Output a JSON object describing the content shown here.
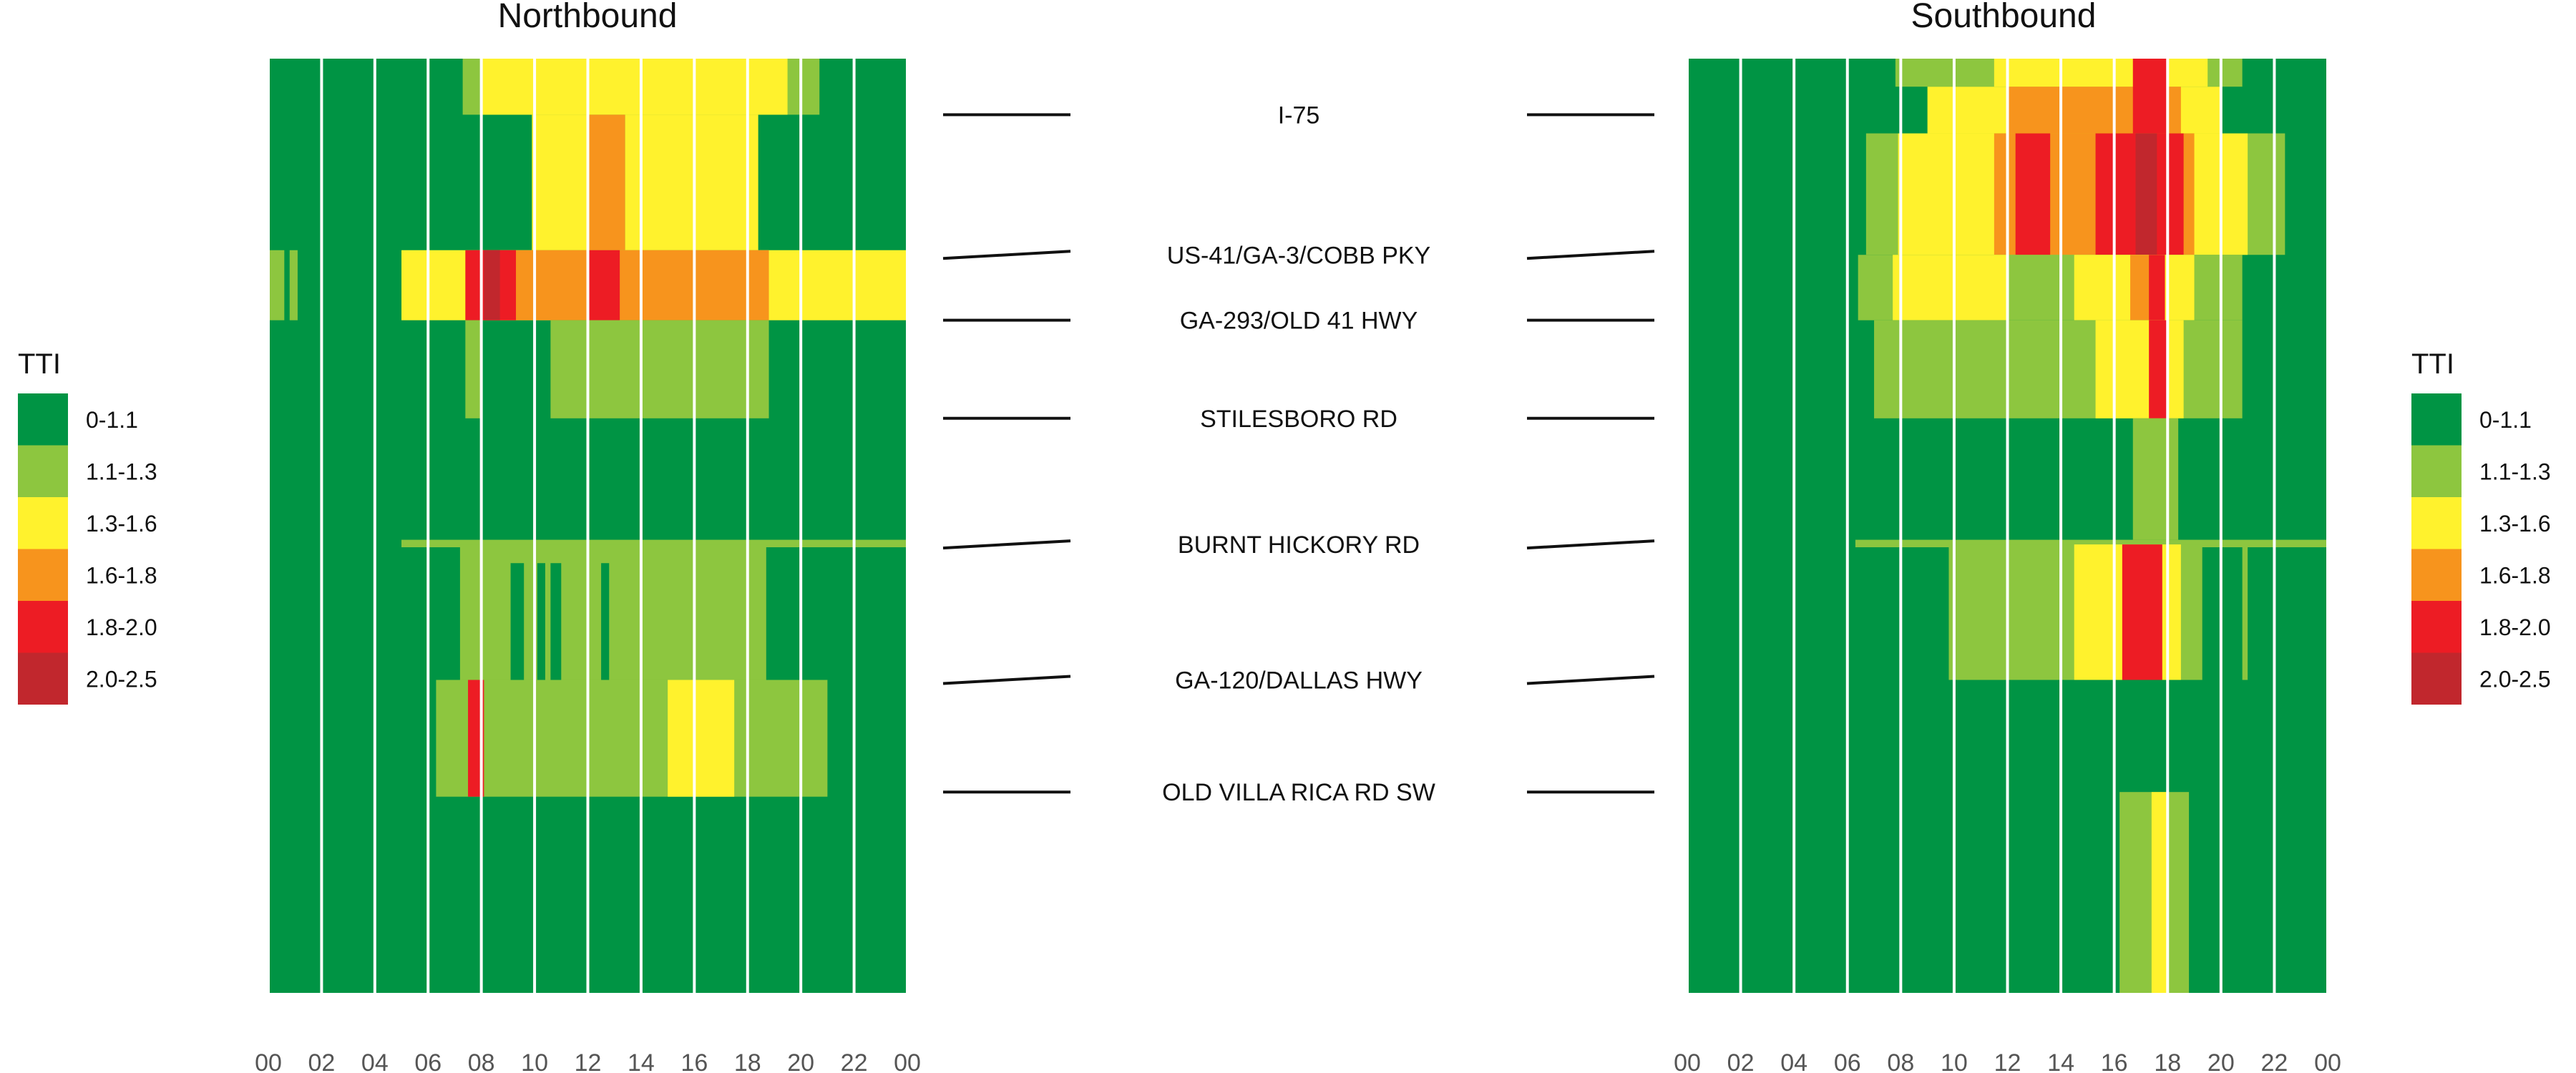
{
  "chart_data": {
    "type": "heatmap",
    "metric": "TTI",
    "legend": {
      "title": "TTI",
      "bins": [
        {
          "label": "0-1.1",
          "color": "#009444"
        },
        {
          "label": "1.1-1.3",
          "color": "#8dc63f"
        },
        {
          "label": "1.3-1.6",
          "color": "#fff22d"
        },
        {
          "label": "1.6-1.8",
          "color": "#f7941d"
        },
        {
          "label": "1.8-2.0",
          "color": "#ed1c24"
        },
        {
          "label": "2.0-2.5",
          "color": "#c1272d"
        }
      ]
    },
    "x_axis": {
      "domain_hours": [
        0,
        24
      ],
      "ticks": [
        "00",
        "02",
        "04",
        "06",
        "08",
        "10",
        "12",
        "14",
        "16",
        "18",
        "20",
        "22",
        "00"
      ]
    },
    "y_axis": {
      "domain_mile": [
        0,
        100
      ],
      "landmarks": [
        {
          "label": "I-75",
          "mile": 6
        },
        {
          "label": "US-41/GA-3/COBB PKY",
          "mile": 21
        },
        {
          "label": "GA-293/OLD 41 HWY",
          "mile": 28
        },
        {
          "label": "STILESBORO RD",
          "mile": 38.5
        },
        {
          "label": "BURNT HICKORY RD",
          "mile": 52
        },
        {
          "label": "GA-120/DALLAS HWY",
          "mile": 66.5
        },
        {
          "label": "OLD VILLA RICA RD SW",
          "mile": 78.5
        }
      ]
    },
    "panels": [
      {
        "title": "Northbound",
        "background_class": 0,
        "cells": [
          [
            7.3,
            20.7,
            0,
            6,
            1
          ],
          [
            8,
            19.5,
            0,
            6,
            2
          ],
          [
            9.9,
            12,
            6,
            20.5,
            2
          ],
          [
            12,
            13.4,
            6,
            20.5,
            3
          ],
          [
            13.4,
            18.4,
            6,
            20.5,
            2
          ],
          [
            5,
            24,
            20.5,
            28,
            2
          ],
          [
            7.7,
            18.8,
            20.5,
            28,
            3
          ],
          [
            7.4,
            9.3,
            20.5,
            28,
            4
          ],
          [
            8.1,
            8.7,
            20.5,
            28,
            5
          ],
          [
            12,
            13.2,
            20.5,
            28,
            4
          ],
          [
            0,
            0.6,
            20.5,
            28,
            1
          ],
          [
            0.8,
            1.1,
            20.5,
            28,
            1
          ],
          [
            7.4,
            8,
            28,
            38.5,
            1
          ],
          [
            10.6,
            18.8,
            28,
            38.5,
            1
          ],
          [
            5,
            24,
            51.5,
            52.3,
            1
          ],
          [
            7.2,
            18.7,
            52,
            66.5,
            1
          ],
          [
            9.1,
            9.6,
            54,
            66.5,
            0
          ],
          [
            10.1,
            10.4,
            54,
            66.5,
            0
          ],
          [
            10.6,
            11,
            54,
            66.5,
            0
          ],
          [
            12.5,
            12.8,
            54,
            66.5,
            0
          ],
          [
            6.3,
            21,
            66.5,
            79,
            1
          ],
          [
            7.5,
            8.1,
            66.5,
            79,
            4
          ],
          [
            15,
            17.5,
            66.5,
            79,
            2
          ]
        ]
      },
      {
        "title": "Southbound",
        "background_class": 0,
        "cells": [
          [
            7.8,
            20.8,
            0,
            3,
            1
          ],
          [
            11.5,
            19.5,
            0,
            3,
            2
          ],
          [
            9,
            20,
            3,
            8,
            2
          ],
          [
            12,
            18.5,
            3,
            8,
            3
          ],
          [
            16.7,
            18,
            0,
            8,
            4
          ],
          [
            6.7,
            22.4,
            8,
            21,
            1
          ],
          [
            7.9,
            21,
            8,
            21,
            2
          ],
          [
            11.5,
            19,
            8,
            21,
            3
          ],
          [
            12.3,
            13.6,
            8,
            21,
            4
          ],
          [
            15.3,
            18.6,
            8,
            21,
            4
          ],
          [
            16.8,
            17.6,
            8,
            21,
            5
          ],
          [
            6.4,
            20.8,
            21,
            28,
            1
          ],
          [
            7.7,
            12,
            21,
            28,
            2
          ],
          [
            14.5,
            19,
            21,
            28,
            2
          ],
          [
            16.6,
            17.8,
            21,
            28,
            3
          ],
          [
            17.3,
            17.9,
            21,
            28,
            4
          ],
          [
            7,
            20.8,
            28,
            38.5,
            1
          ],
          [
            15.3,
            18.6,
            28,
            38.5,
            2
          ],
          [
            17.3,
            18,
            28,
            38.5,
            4
          ],
          [
            16.7,
            18.4,
            38.5,
            51.5,
            1
          ],
          [
            6.3,
            24,
            51.5,
            52.3,
            1
          ],
          [
            9.8,
            19.3,
            52,
            66.5,
            1
          ],
          [
            14.5,
            18.5,
            52,
            66.5,
            2
          ],
          [
            16.3,
            17.8,
            52,
            66.5,
            4
          ],
          [
            20.8,
            21,
            52,
            66.5,
            1
          ],
          [
            16.2,
            18.8,
            78.5,
            100,
            1
          ],
          [
            17.4,
            18,
            78.5,
            100,
            2
          ]
        ]
      }
    ]
  }
}
